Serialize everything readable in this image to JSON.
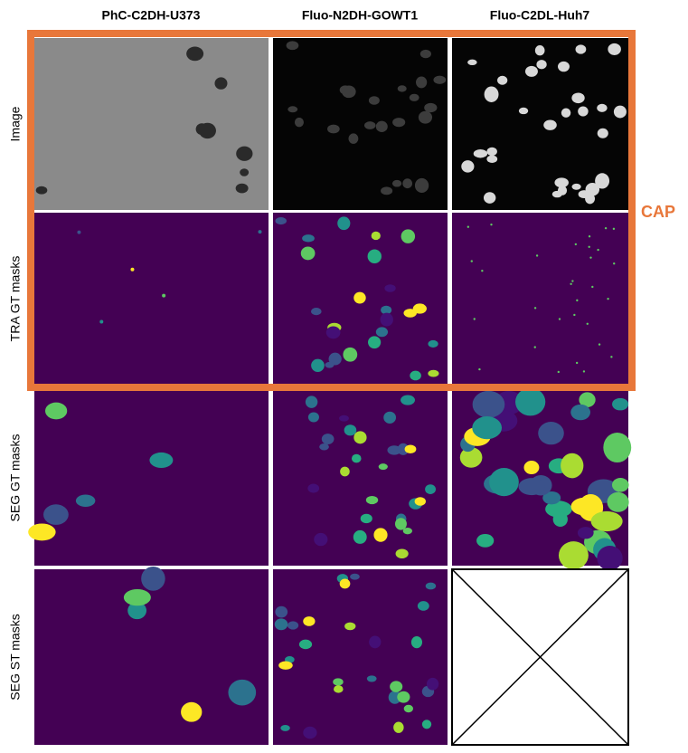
{
  "header": {
    "columns": [
      "PhC-C2DH-U373",
      "Fluo-N2DH-GOWT1",
      "Fluo-C2DL-Huh7"
    ]
  },
  "rows": [
    {
      "label": "Image"
    },
    {
      "label": "TRA GT masks"
    },
    {
      "label": "SEG GT masks"
    },
    {
      "label": "SEG ST masks"
    }
  ],
  "annotation": "CAP"
}
